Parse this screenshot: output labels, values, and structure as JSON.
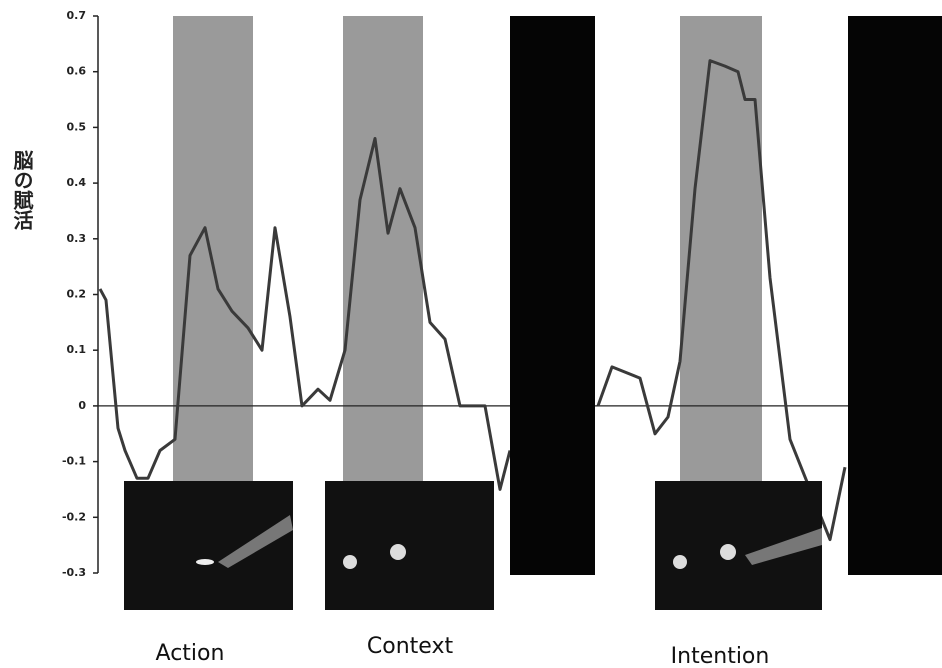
{
  "chart_data": {
    "type": "line",
    "ylabel": "脳の賦活",
    "x": [
      2,
      8,
      20,
      27,
      39,
      50,
      62,
      77,
      92,
      107,
      120,
      134,
      150,
      164,
      177,
      192,
      204,
      220,
      232,
      247,
      262,
      277,
      290,
      302,
      317,
      332,
      347,
      362,
      387,
      402,
      412,
      null,
      500,
      514,
      542,
      557,
      570,
      582,
      597,
      612,
      627,
      640,
      647,
      657,
      672,
      692,
      712,
      732,
      747
    ],
    "series": [
      {
        "name": "脳の賦活",
        "color": "#3a3a3a",
        "values": [
          0.21,
          0.19,
          -0.04,
          -0.08,
          -0.13,
          -0.13,
          -0.08,
          -0.06,
          0.27,
          0.32,
          0.21,
          0.17,
          0.14,
          0.1,
          0.32,
          0.16,
          0.0,
          0.03,
          0.01,
          0.1,
          0.37,
          0.48,
          0.31,
          0.39,
          0.32,
          0.15,
          0.12,
          0.0,
          0.0,
          -0.15,
          -0.08,
          null,
          0.0,
          0.07,
          0.05,
          -0.05,
          -0.02,
          0.08,
          0.39,
          0.62,
          0.61,
          0.6,
          0.55,
          0.55,
          0.23,
          -0.06,
          -0.15,
          -0.24,
          -0.11
        ]
      }
    ],
    "bands": [
      {
        "x": [
          75,
          155
        ],
        "color": "#9a9a9a"
      },
      {
        "x": [
          245,
          325
        ],
        "color": "#9a9a9a"
      },
      {
        "x": [
          412,
          497
        ],
        "color": "#050505"
      },
      {
        "x": [
          582,
          664
        ],
        "color": "#9a9a9a"
      },
      {
        "x": [
          750,
          844
        ],
        "color": "#050505"
      }
    ],
    "xlim": [
      0,
      844
    ],
    "ylim": [
      -0.3,
      0.7
    ],
    "yticks": [
      -0.3,
      -0.2,
      -0.1,
      0,
      0.1,
      0.2,
      0.3,
      0.4,
      0.5,
      0.6,
      0.7
    ],
    "conditions": [
      "Action",
      "Context",
      "Intention"
    ]
  }
}
